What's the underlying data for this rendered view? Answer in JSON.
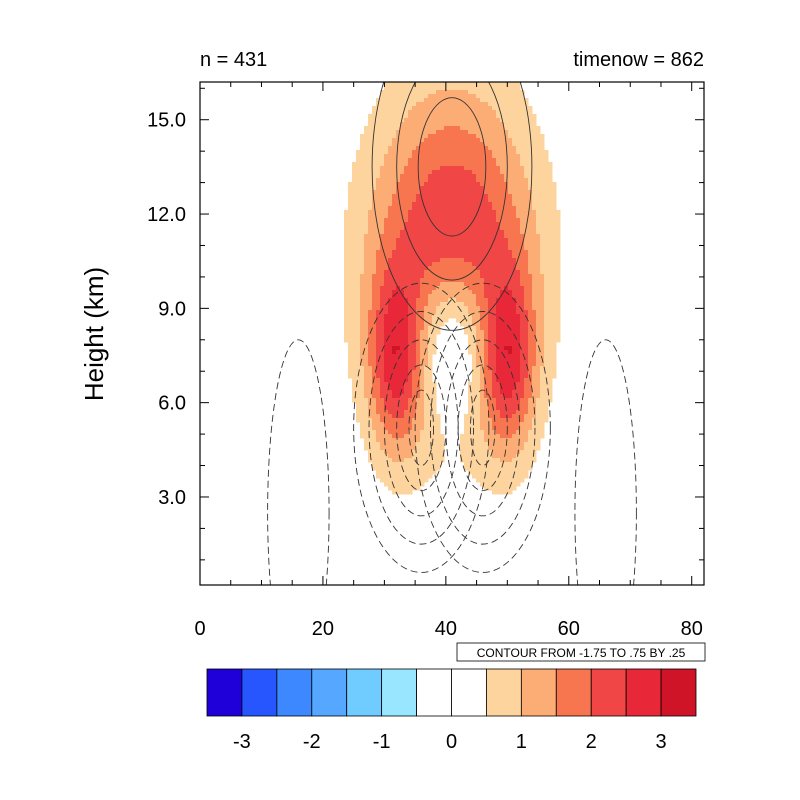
{
  "chart_data": {
    "type": "heatmap",
    "title_left": "n = 431",
    "title_right": "timenow = 862",
    "ylabel": "Height (km)",
    "xlabel": "",
    "xlim": [
      0,
      82
    ],
    "ylim": [
      0.2,
      16.2
    ],
    "x_ticks": [
      0,
      20,
      40,
      60,
      80
    ],
    "x_tick_labels": [
      "0",
      "20",
      "40",
      "60",
      "80"
    ],
    "y_ticks": [
      3,
      6,
      9,
      12,
      15
    ],
    "y_tick_labels": [
      "3.0",
      "6.0",
      "9.0",
      "12.0",
      "15.0"
    ],
    "contour_info": "CONTOUR FROM -1.75 TO .75 BY .25",
    "colorbar": {
      "colors": [
        "#2000d8",
        "#2756ff",
        "#3d88ff",
        "#55a7ff",
        "#70cbff",
        "#98e6ff",
        "#ffffff",
        "#ffffff",
        "#fdd49e",
        "#fcac75",
        "#f7764f",
        "#f04646",
        "#e82838",
        "#d01428"
      ],
      "labels": [
        "-3",
        "-2",
        "-1",
        "0",
        "1",
        "2",
        "3"
      ]
    },
    "filled_field": {
      "description_free": true,
      "levels": [
        0.5,
        1.0,
        1.5,
        2.0,
        2.5,
        3.0
      ],
      "blobs": [
        {
          "kind": "cap",
          "cx": 41,
          "cy": 10.5,
          "rx": 13.5,
          "ry": 5.4,
          "amp": 2.8
        },
        {
          "kind": "left-limb",
          "cx": 32,
          "cy": 7.3,
          "rx": 4.5,
          "ry": 2.8,
          "amp": 2.2
        },
        {
          "kind": "right-limb",
          "cx": 50,
          "cy": 7.3,
          "rx": 4.5,
          "ry": 2.8,
          "amp": 2.2
        }
      ]
    },
    "line_field": {
      "solid_positive_center": {
        "x": 41,
        "y": 13.5
      },
      "dashed_negative_centers": [
        {
          "x": 36,
          "y": 5.2
        },
        {
          "x": 46,
          "y": 5.2
        }
      ]
    }
  }
}
